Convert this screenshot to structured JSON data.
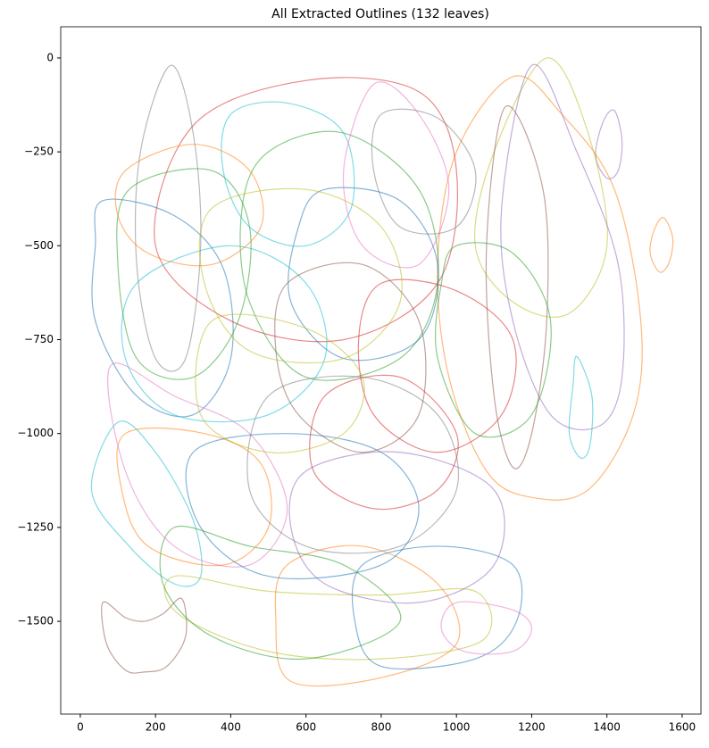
{
  "chart_data": {
    "type": "outline",
    "title": "All Extracted Outlines (132 leaves)",
    "xlim": [
      -52,
      1650
    ],
    "ylim": [
      -1747,
      83
    ],
    "xticks": [
      0,
      200,
      400,
      600,
      800,
      1000,
      1200,
      1400,
      1600
    ],
    "yticks": [
      0,
      {
        "value": -250,
        "label": "−250"
      },
      {
        "value": -500,
        "label": "−500"
      },
      {
        "value": -750,
        "label": "−750"
      },
      {
        "value": -1000,
        "label": "−1000"
      },
      {
        "value": -1250,
        "label": "−1250"
      },
      {
        "value": -1500,
        "label": "−1500"
      }
    ],
    "series": [
      {
        "color": "#8c564b",
        "x": [
          60,
          120,
          170,
          220,
          270,
          280,
          230,
          170,
          120,
          70
        ],
        "y": [
          -1450,
          -1490,
          -1500,
          -1480,
          -1440,
          -1540,
          -1620,
          -1635,
          -1630,
          -1560
        ]
      },
      {
        "color": "#ff7f0e",
        "x": [
          1550,
          1575,
          1565,
          1540,
          1515,
          1525
        ],
        "y": [
          -425,
          -480,
          -545,
          -570,
          -520,
          -460
        ]
      },
      {
        "color": "#9467bd",
        "x": [
          1420,
          1440,
          1430,
          1400,
          1370,
          1390
        ],
        "y": [
          -140,
          -220,
          -300,
          -320,
          -260,
          -170
        ]
      },
      {
        "color": "#17becf",
        "x": [
          1320,
          1360,
          1355,
          1330,
          1300,
          1310
        ],
        "y": [
          -795,
          -900,
          -1030,
          -1065,
          -1000,
          -870
        ]
      },
      {
        "color": "#ff7f0e",
        "x": [
          1150,
          1280,
          1420,
          1490,
          1470,
          1350,
          1200,
          1080,
          980,
          950,
          1000
        ],
        "y": [
          -50,
          -150,
          -350,
          -700,
          -950,
          -1150,
          -1170,
          -1100,
          -850,
          -550,
          -250
        ]
      },
      {
        "color": "#bcbd22",
        "x": [
          1240,
          1350,
          1400,
          1300,
          1150,
          1050,
          1100
        ],
        "y": [
          0,
          -200,
          -500,
          -680,
          -650,
          -500,
          -250
        ]
      },
      {
        "color": "#9467bd",
        "x": [
          1200,
          1320,
          1430,
          1440,
          1380,
          1250,
          1150,
          1120
        ],
        "y": [
          -20,
          -250,
          -550,
          -850,
          -980,
          -950,
          -700,
          -400
        ]
      },
      {
        "color": "#8c564b",
        "x": [
          1130,
          1230,
          1240,
          1200,
          1150,
          1100,
          1080
        ],
        "y": [
          -130,
          -350,
          -700,
          -1000,
          -1090,
          -900,
          -500
        ]
      },
      {
        "color": "#17becf",
        "x": [
          100,
          200,
          300,
          320,
          250,
          130,
          30
        ],
        "y": [
          -970,
          -1050,
          -1230,
          -1380,
          -1400,
          -1300,
          -1150
        ]
      },
      {
        "color": "#1f77b4",
        "x": [
          60,
          250,
          380,
          400,
          300,
          150,
          40,
          40
        ],
        "y": [
          -380,
          -420,
          -560,
          -800,
          -950,
          -900,
          -700,
          -500
        ]
      },
      {
        "color": "#7f7f7f",
        "x": [
          240,
          300,
          320,
          280,
          200,
          150,
          160
        ],
        "y": [
          -20,
          -200,
          -500,
          -800,
          -800,
          -550,
          -250
        ]
      },
      {
        "color": "#d62728",
        "x": [
          300,
          600,
          900,
          1000,
          950,
          700,
          400,
          200
        ],
        "y": [
          -180,
          -60,
          -90,
          -300,
          -600,
          -750,
          -700,
          -500
        ]
      },
      {
        "color": "#bcbd22",
        "x": [
          250,
          500,
          800,
          1050,
          1070,
          800,
          500,
          260
        ],
        "y": [
          -1380,
          -1420,
          -1430,
          -1420,
          -1550,
          -1600,
          -1580,
          -1480
        ]
      },
      {
        "color": "#ff7f0e",
        "x": [
          550,
          750,
          950,
          1000,
          800,
          560,
          520
        ],
        "y": [
          -1350,
          -1300,
          -1400,
          -1560,
          -1650,
          -1660,
          -1500
        ]
      },
      {
        "color": "#1f77b4",
        "x": [
          750,
          950,
          1150,
          1160,
          1050,
          800,
          730
        ],
        "y": [
          -1350,
          -1300,
          -1350,
          -1500,
          -1600,
          -1620,
          -1500
        ]
      },
      {
        "color": "#e377c2",
        "x": [
          1000,
          1150,
          1200,
          1150,
          1020,
          960
        ],
        "y": [
          -1450,
          -1470,
          -1520,
          -1580,
          -1580,
          -1520
        ]
      },
      {
        "color": "#2ca02c",
        "x": [
          250,
          450,
          700,
          850,
          600,
          350,
          220
        ],
        "y": [
          -1250,
          -1300,
          -1350,
          -1500,
          -1600,
          -1540,
          -1400
        ]
      },
      {
        "color": "#ff7f0e",
        "x": [
          120,
          330,
          480,
          500,
          380,
          180,
          110
        ],
        "y": [
          -1000,
          -1000,
          -1080,
          -1250,
          -1350,
          -1300,
          -1150
        ]
      },
      {
        "color": "#2ca02c",
        "x": [
          500,
          700,
          900,
          950,
          850,
          600,
          450,
          430
        ],
        "y": [
          -250,
          -200,
          -350,
          -600,
          -800,
          -850,
          -650,
          -400
        ]
      },
      {
        "color": "#1f77b4",
        "x": [
          650,
          850,
          950,
          900,
          700,
          560,
          580
        ],
        "y": [
          -350,
          -380,
          -550,
          -750,
          -800,
          -650,
          -450
        ]
      },
      {
        "color": "#e377c2",
        "x": [
          80,
          250,
          450,
          550,
          450,
          250,
          120
        ],
        "y": [
          -820,
          -900,
          -1000,
          -1200,
          -1350,
          -1300,
          -1100
        ]
      },
      {
        "color": "#d62728",
        "x": [
          800,
          1000,
          1150,
          1120,
          950,
          780,
          740
        ],
        "y": [
          -600,
          -620,
          -750,
          -950,
          -1050,
          -950,
          -750
        ]
      },
      {
        "color": "#7f7f7f",
        "x": [
          500,
          750,
          950,
          1000,
          850,
          600,
          450
        ],
        "y": [
          -900,
          -850,
          -950,
          -1150,
          -1300,
          -1300,
          -1150
        ]
      },
      {
        "color": "#17becf",
        "x": [
          150,
          400,
          600,
          650,
          500,
          250,
          120
        ],
        "y": [
          -600,
          -500,
          -600,
          -800,
          -950,
          -950,
          -800
        ]
      },
      {
        "color": "#9467bd",
        "x": [
          600,
          850,
          1100,
          1100,
          900,
          650,
          560
        ],
        "y": [
          -1100,
          -1050,
          -1150,
          -1350,
          -1450,
          -1400,
          -1250
        ]
      },
      {
        "color": "#bcbd22",
        "x": [
          350,
          600,
          800,
          850,
          700,
          450,
          330
        ],
        "y": [
          -400,
          -350,
          -450,
          -650,
          -800,
          -780,
          -600
        ]
      },
      {
        "color": "#1f77b4",
        "x": [
          300,
          550,
          800,
          900,
          800,
          500,
          320
        ],
        "y": [
          -1050,
          -1000,
          -1050,
          -1200,
          -1350,
          -1380,
          -1250
        ]
      },
      {
        "color": "#2ca02c",
        "x": [
          130,
          350,
          450,
          420,
          300,
          150,
          100
        ],
        "y": [
          -350,
          -300,
          -450,
          -700,
          -850,
          -800,
          -550
        ]
      },
      {
        "color": "#d62728",
        "x": [
          650,
          850,
          1000,
          950,
          780,
          620
        ],
        "y": [
          -900,
          -850,
          -1000,
          -1150,
          -1200,
          -1100
        ]
      },
      {
        "color": "#17becf",
        "x": [
          400,
          550,
          700,
          720,
          600,
          450,
          380
        ],
        "y": [
          -150,
          -120,
          -200,
          -400,
          -500,
          -450,
          -300
        ]
      },
      {
        "color": "#8c564b",
        "x": [
          550,
          750,
          900,
          900,
          750,
          580,
          520
        ],
        "y": [
          -600,
          -550,
          -700,
          -950,
          -1050,
          -950,
          -780
        ]
      },
      {
        "color": "#ff7f0e",
        "x": [
          120,
          300,
          450,
          480,
          350,
          180,
          100
        ],
        "y": [
          -300,
          -230,
          -300,
          -450,
          -550,
          -520,
          -420
        ]
      },
      {
        "color": "#e377c2",
        "x": [
          780,
          900,
          980,
          900,
          750,
          700
        ],
        "y": [
          -70,
          -150,
          -350,
          -550,
          -500,
          -300
        ]
      },
      {
        "color": "#2ca02c",
        "x": [
          1000,
          1150,
          1250,
          1200,
          1050,
          950,
          960
        ],
        "y": [
          -500,
          -520,
          -700,
          -950,
          -1000,
          -800,
          -600
        ]
      },
      {
        "color": "#bcbd22",
        "x": [
          350,
          600,
          750,
          700,
          500,
          320
        ],
        "y": [
          -700,
          -720,
          -850,
          -1000,
          -1050,
          -950
        ]
      },
      {
        "color": "#7f7f7f",
        "x": [
          800,
          950,
          1050,
          1000,
          850,
          780
        ],
        "y": [
          -150,
          -160,
          -300,
          -450,
          -450,
          -300
        ]
      }
    ]
  }
}
